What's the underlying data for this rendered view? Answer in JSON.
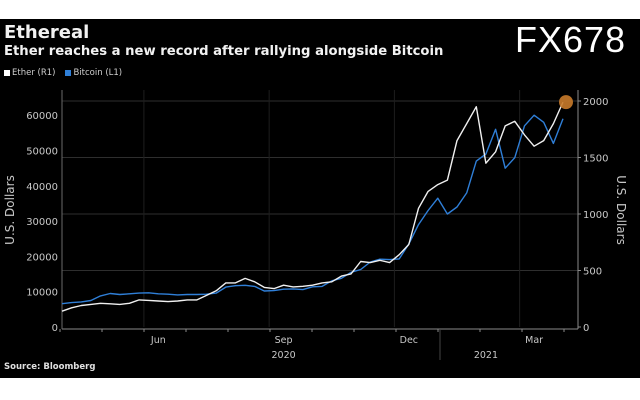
{
  "header": {
    "title": "Ethereal",
    "subtitle": "Ether reaches a new record after rallying alongside Bitcoin"
  },
  "footer": {
    "source": "Source: Bloomberg"
  },
  "watermark": "FX678",
  "chart_data": {
    "type": "line",
    "title": "Ethereal",
    "subtitle": "Ether reaches a new record after rallying alongside Bitcoin",
    "x_start": "2020-04",
    "x_unit": "week",
    "legend": [
      {
        "name": "Ether (R1)",
        "color": "#ffffff"
      },
      {
        "name": "Bitcoin (L1)",
        "color": "#2f7fd8"
      }
    ],
    "legend_position": "top-left",
    "left_axis": {
      "label": "U.S. Dollars",
      "ticks": [
        0,
        10000,
        20000,
        30000,
        40000,
        50000,
        60000
      ],
      "ylim": [
        0,
        66000
      ]
    },
    "right_axis": {
      "label": "U.S. Dollars",
      "ticks": [
        0,
        500,
        1000,
        1500,
        2000
      ],
      "ylim": [
        0,
        2200
      ]
    },
    "x_ticks": [
      {
        "label": "Jun",
        "week": 10
      },
      {
        "label": "Sep",
        "week": 23
      },
      {
        "label": "Dec",
        "week": 36
      },
      {
        "label": "Mar",
        "week": 49
      }
    ],
    "year_labels": [
      {
        "label": "2020",
        "week": 23
      },
      {
        "label": "2021",
        "week": 44
      }
    ],
    "series": [
      {
        "name": "Bitcoin (L1)",
        "axis": "left",
        "color": "#2f7fd8",
        "values": [
          6600,
          6900,
          7100,
          7500,
          8800,
          9500,
          9200,
          9400,
          9600,
          9700,
          9400,
          9300,
          9100,
          9200,
          9200,
          9300,
          9600,
          11300,
          11700,
          11800,
          11500,
          10200,
          10300,
          10700,
          10800,
          10600,
          11400,
          11500,
          13100,
          13800,
          15500,
          16300,
          18400,
          19200,
          19100,
          19300,
          23500,
          29000,
          33000,
          36500,
          32000,
          34000,
          38000,
          47000,
          49000,
          56000,
          45000,
          48000,
          57000,
          60000,
          58000,
          52000,
          59000
        ]
      },
      {
        "name": "Ether (R1)",
        "axis": "right",
        "color": "#f0f0f0",
        "values": [
          140,
          170,
          190,
          200,
          210,
          205,
          200,
          210,
          240,
          235,
          230,
          225,
          230,
          240,
          240,
          280,
          320,
          390,
          390,
          430,
          400,
          350,
          340,
          370,
          355,
          360,
          370,
          390,
          400,
          450,
          470,
          580,
          570,
          590,
          570,
          640,
          730,
          1050,
          1200,
          1260,
          1300,
          1650,
          1800,
          1950,
          1450,
          1550,
          1780,
          1820,
          1700,
          1600,
          1650,
          1800,
          1990
        ]
      }
    ],
    "annotations": [
      {
        "type": "marker",
        "series": "Ether (R1)",
        "point": "last",
        "color": "#c87a2a"
      }
    ],
    "grid": true
  }
}
